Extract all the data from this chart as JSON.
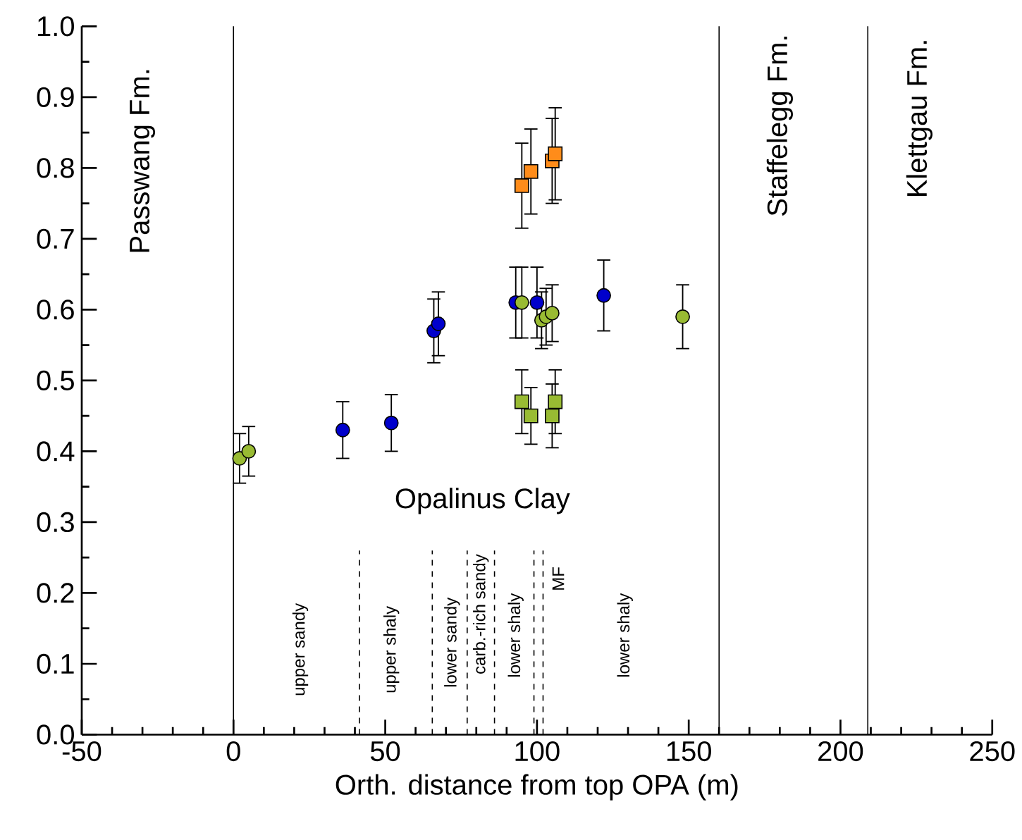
{
  "chart_data": {
    "type": "scatter",
    "xlabel": "Orth. distance from top OPA (m)",
    "xlim": [
      -50,
      250
    ],
    "xticks": [
      -50,
      0,
      50,
      100,
      150,
      200,
      250
    ],
    "ylim": [
      0,
      1
    ],
    "yticks": [
      {
        "value": 0,
        "label": "0.0"
      },
      0.1,
      0.2,
      0.3,
      0.4,
      0.5,
      0.6,
      0.7,
      0.8,
      0.9,
      {
        "value": 1,
        "label": "1.0"
      }
    ],
    "series": [
      {
        "marker": "circle",
        "color": "#0000cc",
        "x": [
          36,
          52,
          66,
          67.5,
          93,
          100,
          122
        ],
        "values": [
          0.43,
          0.44,
          0.57,
          0.58,
          0.61,
          0.61,
          0.62
        ],
        "errors": [
          0.04,
          0.04,
          0.045,
          0.045,
          0.05,
          0.05,
          0.05
        ]
      },
      {
        "marker": "circle",
        "color": "#99bb33",
        "x": [
          2,
          5,
          95,
          101.5,
          103,
          105,
          148
        ],
        "values": [
          0.39,
          0.4,
          0.61,
          0.585,
          0.59,
          0.595,
          0.59
        ],
        "errors": [
          0.035,
          0.035,
          0.05,
          0.04,
          0.04,
          0.04,
          0.045
        ]
      },
      {
        "marker": "square",
        "color": "#99bb33",
        "x": [
          95,
          98,
          105,
          106
        ],
        "values": [
          0.47,
          0.45,
          0.45,
          0.47
        ],
        "errors": [
          0.045,
          0.04,
          0.045,
          0.045
        ]
      },
      {
        "marker": "square",
        "color": "#ff8c1a",
        "x": [
          95,
          98,
          105,
          106
        ],
        "values": [
          0.775,
          0.795,
          0.81,
          0.82
        ],
        "errors": [
          0.06,
          0.06,
          0.06,
          0.065
        ]
      }
    ],
    "ref_lines": [
      {
        "axis": "x",
        "value": 0,
        "line_style": "solid"
      },
      {
        "axis": "x",
        "value": 160,
        "line_style": "solid"
      },
      {
        "axis": "x",
        "value": 209,
        "line_style": "solid"
      },
      {
        "axis": "x",
        "value": 41.5,
        "line_style": "dashed"
      },
      {
        "axis": "x",
        "value": 65.5,
        "line_style": "dashed"
      },
      {
        "axis": "x",
        "value": 77,
        "line_style": "dashed"
      },
      {
        "axis": "x",
        "value": 86,
        "line_style": "dashed"
      },
      {
        "axis": "x",
        "value": 99,
        "line_style": "dashed"
      },
      {
        "axis": "x",
        "value": 102,
        "line_style": "dashed"
      }
    ],
    "annotations": [
      "Passwang Fm.",
      "Staffelegg Fm.",
      "Klettgau Fm.",
      "Opalinus Clay",
      "upper sandy",
      "upper shaly",
      "lower sandy",
      "carb.-rich sandy",
      "lower shaly",
      "MF",
      "lower shaly"
    ]
  }
}
